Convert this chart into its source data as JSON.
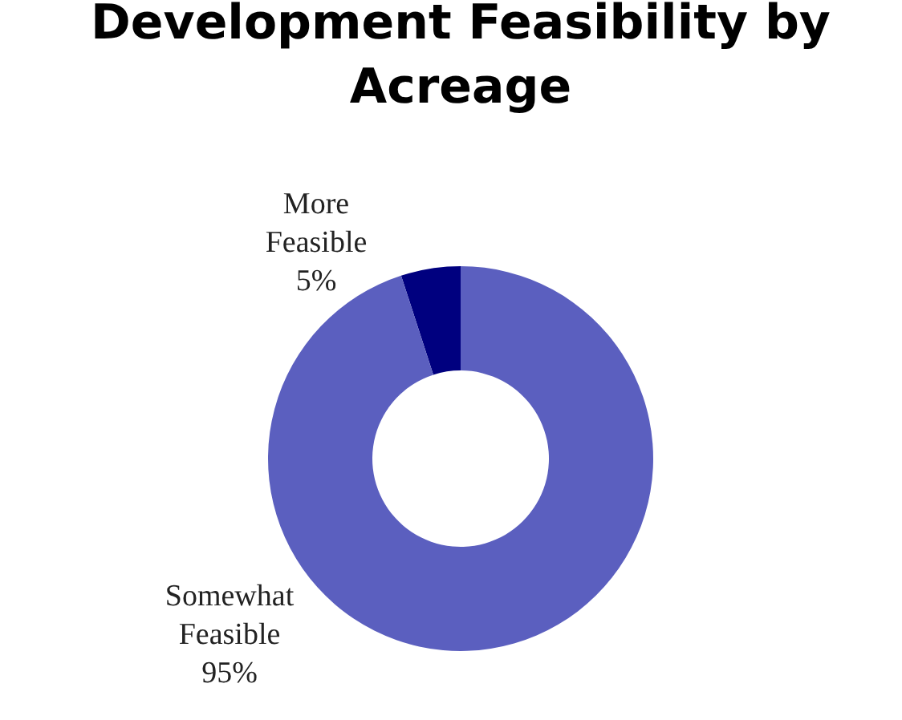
{
  "chart_data": {
    "type": "donut",
    "title": "Development Feasibility by Acreage",
    "categories": [
      "More Feasible",
      "Somewhat Feasible"
    ],
    "values": [
      5,
      95
    ],
    "colors": [
      "#00007f",
      "#5b5fbf"
    ],
    "value_labels": [
      "5%",
      "95%"
    ],
    "legend": false
  }
}
